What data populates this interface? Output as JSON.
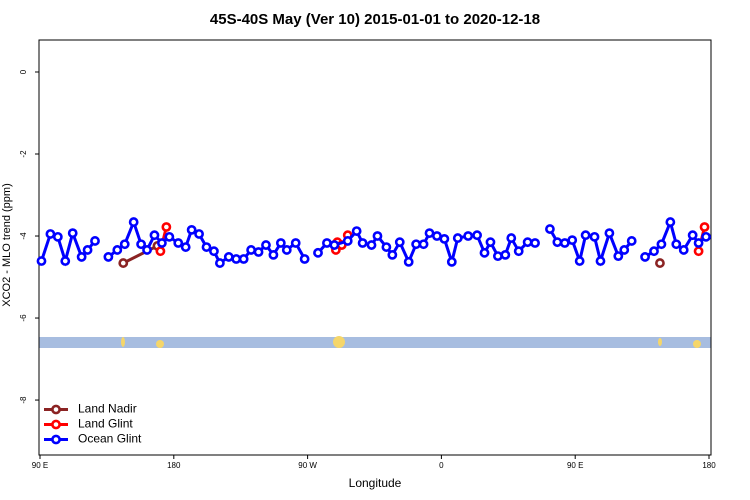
{
  "chart_data": {
    "type": "line",
    "title": "45S-40S May (Ver 10)   2015-01-01 to 2020-12-18",
    "xlabel": "Longitude",
    "ylabel": "XCO2 - MLO trend (ppm)",
    "xlim": [
      90,
      540
    ],
    "ylim": [
      -9.34,
      0.78
    ],
    "xticks": [
      {
        "value": 90,
        "label": "90 E"
      },
      180,
      {
        "value": 270,
        "label": "90 W"
      },
      {
        "value": 360,
        "label": "0"
      },
      {
        "value": 450,
        "label": "90 E"
      },
      {
        "value": 540,
        "label": "180"
      }
    ],
    "yticks": [
      0,
      -2,
      -4,
      -6,
      -8
    ],
    "legend": "bottomleft",
    "series": [
      {
        "name": "Land Nadir",
        "color": "#8b2323",
        "x": [
          146,
          169,
          null,
          507
        ],
        "values": [
          -4.66,
          -4.24,
          null,
          -4.66
        ]
      },
      {
        "name": "Land Glint",
        "color": "#ff0000",
        "x": [
          171,
          175,
          null,
          289,
          290,
          293,
          297,
          null,
          533,
          537
        ],
        "values": [
          -4.37,
          -3.78,
          null,
          -4.34,
          -4.15,
          -4.22,
          -3.98,
          null,
          -4.37,
          -3.78
        ]
      },
      {
        "name": "Ocean Glint",
        "color": "#0000ff",
        "x": [
          91,
          97,
          102,
          107,
          112,
          118,
          122,
          127,
          null,
          136,
          142,
          147,
          153,
          158,
          162,
          167,
          172,
          177,
          183,
          188,
          192,
          197,
          202,
          207,
          211,
          217,
          222,
          227,
          232,
          237,
          242,
          247,
          252,
          256,
          262,
          268,
          null,
          277,
          283,
          288,
          297,
          303,
          307,
          313,
          317,
          323,
          327,
          332,
          338,
          343,
          348,
          352,
          357,
          362,
          367,
          371,
          378,
          384,
          389,
          393,
          398,
          403,
          407,
          412,
          418,
          423,
          null,
          433,
          438,
          443,
          448,
          453,
          457,
          463,
          467,
          473,
          479,
          483,
          488,
          null,
          497,
          503,
          508,
          514,
          518,
          523,
          529,
          533,
          538
        ],
        "values": [
          -4.61,
          -3.95,
          -4.02,
          -4.61,
          -3.93,
          -4.51,
          -4.34,
          -4.12,
          null,
          -4.51,
          -4.34,
          -4.2,
          -3.66,
          -4.2,
          -4.34,
          -3.98,
          -4.17,
          -4.02,
          -4.17,
          -4.27,
          -3.85,
          -3.95,
          -4.27,
          -4.37,
          -4.66,
          -4.51,
          -4.56,
          -4.56,
          -4.34,
          -4.39,
          -4.22,
          -4.46,
          -4.17,
          -4.34,
          -4.17,
          -4.56,
          null,
          -4.41,
          -4.17,
          -4.22,
          -4.12,
          -3.88,
          -4.17,
          -4.22,
          -4.0,
          -4.27,
          -4.46,
          -4.15,
          -4.63,
          -4.2,
          -4.2,
          -3.93,
          -4.0,
          -4.07,
          -4.63,
          -4.05,
          -4.0,
          -3.98,
          -4.41,
          -4.15,
          -4.49,
          -4.46,
          -4.05,
          -4.37,
          -4.15,
          -4.17,
          null,
          -3.83,
          -4.15,
          -4.17,
          -4.1,
          -4.61,
          -3.98,
          -4.02,
          -4.61,
          -3.93,
          -4.49,
          -4.34,
          -4.12,
          null,
          -4.51,
          -4.37,
          -4.2,
          -3.66,
          -4.2,
          -4.34,
          -3.98,
          -4.17,
          -4.02
        ]
      }
    ]
  }
}
